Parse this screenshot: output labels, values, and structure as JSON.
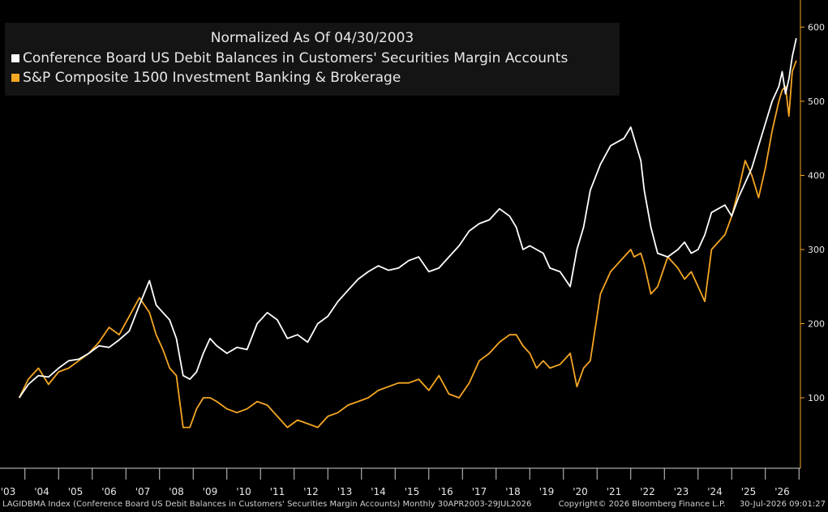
{
  "chart_data": {
    "type": "line",
    "title": "Normalized As Of 04/30/2003",
    "y_ticks": [
      100,
      200,
      300,
      400,
      500,
      600
    ],
    "ylim": [
      0,
      650
    ],
    "x_tick_labels": [
      "'03",
      "'04",
      "'05",
      "'06",
      "'07",
      "'08",
      "'09",
      "'10",
      "'11",
      "'12",
      "'13",
      "'14",
      "'15",
      "'16",
      "'17",
      "'18",
      "'19",
      "'20",
      "'21",
      "'22",
      "'23",
      "'24",
      "'25",
      "'26"
    ],
    "axis_side": "right",
    "grid": false,
    "legend_placement": "top-left",
    "series": [
      {
        "name": "Conference Board US Debit Balances in Customers' Securities Margin Accounts",
        "color": "#ffffff",
        "x": [
          2003.33,
          2003.6,
          2003.9,
          2004.2,
          2004.5,
          2004.8,
          2005.1,
          2005.4,
          2005.7,
          2006.0,
          2006.3,
          2006.6,
          2006.9,
          2007.2,
          2007.4,
          2007.6,
          2007.8,
          2008.0,
          2008.2,
          2008.4,
          2008.6,
          2008.8,
          2009.0,
          2009.2,
          2009.5,
          2009.8,
          2010.1,
          2010.4,
          2010.7,
          2011.0,
          2011.3,
          2011.6,
          2011.9,
          2012.2,
          2012.5,
          2012.8,
          2013.1,
          2013.4,
          2013.7,
          2014.0,
          2014.3,
          2014.6,
          2014.9,
          2015.2,
          2015.5,
          2015.8,
          2016.1,
          2016.4,
          2016.7,
          2017.0,
          2017.3,
          2017.6,
          2017.9,
          2018.1,
          2018.3,
          2018.5,
          2018.7,
          2018.9,
          2019.1,
          2019.4,
          2019.7,
          2019.9,
          2020.1,
          2020.3,
          2020.6,
          2020.9,
          2021.1,
          2021.3,
          2021.5,
          2021.6,
          2021.8,
          2021.9,
          2022.1,
          2022.3,
          2022.6,
          2022.9,
          2023.1,
          2023.3,
          2023.5,
          2023.7,
          2023.9,
          2024.1,
          2024.3,
          2024.5,
          2024.7,
          2024.9,
          2025.1,
          2025.3,
          2025.5,
          2025.7,
          2025.9,
          2026.0,
          2026.1,
          2026.2,
          2026.3,
          2026.42
        ],
        "values": [
          100,
          118,
          130,
          128,
          140,
          150,
          152,
          160,
          170,
          168,
          178,
          190,
          225,
          258,
          225,
          215,
          205,
          180,
          130,
          125,
          135,
          160,
          180,
          170,
          160,
          168,
          165,
          200,
          215,
          205,
          180,
          185,
          175,
          200,
          210,
          230,
          245,
          260,
          270,
          278,
          272,
          275,
          285,
          290,
          270,
          275,
          290,
          305,
          325,
          335,
          340,
          355,
          345,
          330,
          300,
          305,
          300,
          295,
          275,
          270,
          250,
          300,
          330,
          380,
          415,
          440,
          445,
          450,
          465,
          450,
          420,
          380,
          330,
          295,
          290,
          300,
          310,
          295,
          300,
          320,
          350,
          355,
          360,
          345,
          370,
          390,
          410,
          440,
          470,
          500,
          520,
          540,
          510,
          530,
          560,
          585
        ]
      },
      {
        "name": "S&P Composite 1500 Investment Banking & Brokerage",
        "color": "#f5a623",
        "x": [
          2003.33,
          2003.6,
          2003.9,
          2004.2,
          2004.5,
          2004.8,
          2005.1,
          2005.4,
          2005.7,
          2006.0,
          2006.3,
          2006.6,
          2006.9,
          2007.2,
          2007.4,
          2007.6,
          2007.8,
          2008.0,
          2008.2,
          2008.4,
          2008.6,
          2008.8,
          2009.0,
          2009.2,
          2009.5,
          2009.8,
          2010.1,
          2010.4,
          2010.7,
          2011.0,
          2011.3,
          2011.6,
          2011.9,
          2012.2,
          2012.5,
          2012.8,
          2013.1,
          2013.4,
          2013.7,
          2014.0,
          2014.3,
          2014.6,
          2014.9,
          2015.2,
          2015.5,
          2015.8,
          2016.1,
          2016.4,
          2016.7,
          2017.0,
          2017.3,
          2017.6,
          2017.9,
          2018.1,
          2018.3,
          2018.5,
          2018.7,
          2018.9,
          2019.1,
          2019.4,
          2019.7,
          2019.9,
          2020.1,
          2020.3,
          2020.6,
          2020.9,
          2021.1,
          2021.3,
          2021.5,
          2021.6,
          2021.8,
          2021.9,
          2022.1,
          2022.3,
          2022.6,
          2022.9,
          2023.1,
          2023.3,
          2023.5,
          2023.7,
          2023.9,
          2024.1,
          2024.3,
          2024.5,
          2024.7,
          2024.9,
          2025.1,
          2025.3,
          2025.5,
          2025.7,
          2025.9,
          2026.0,
          2026.1,
          2026.2,
          2026.3,
          2026.42
        ],
        "values": [
          100,
          125,
          140,
          118,
          135,
          140,
          150,
          160,
          175,
          195,
          185,
          210,
          235,
          215,
          185,
          165,
          140,
          130,
          60,
          60,
          85,
          100,
          100,
          95,
          85,
          80,
          85,
          95,
          90,
          75,
          60,
          70,
          65,
          60,
          75,
          80,
          90,
          95,
          100,
          110,
          115,
          120,
          120,
          125,
          110,
          130,
          105,
          100,
          120,
          150,
          160,
          175,
          185,
          185,
          170,
          160,
          140,
          150,
          140,
          145,
          160,
          115,
          140,
          150,
          240,
          270,
          280,
          290,
          300,
          290,
          295,
          280,
          240,
          250,
          290,
          275,
          260,
          270,
          250,
          230,
          300,
          310,
          320,
          345,
          380,
          420,
          400,
          370,
          410,
          460,
          500,
          515,
          520,
          480,
          540,
          555
        ]
      }
    ]
  },
  "footer": {
    "source": "LAGIDBMA Index (Conference Board US Debit Balances in Customers' Securities Margin Accounts) Monthly 30APR2003-29JUL2026",
    "copyright": "Copyright© 2026 Bloomberg Finance L.P.",
    "timestamp": "30-Jul-2026 09:01:27"
  }
}
